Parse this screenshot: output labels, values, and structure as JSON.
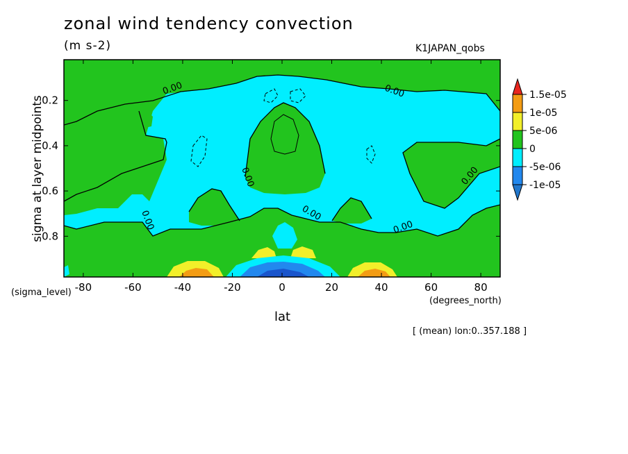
{
  "chart_data": {
    "type": "heatmap",
    "title": "zonal wind tendency convection",
    "units": "(m s-2)",
    "run_label": "K1JAPAN_qobs",
    "xlabel": "lat",
    "x_units_note": "(degrees_north)",
    "ylabel": "sigma at layer midpoints",
    "y_units_note": "(sigma_level)",
    "mean_note": "[ (mean) lon:0..357.188 ]",
    "x_ticks": [
      "-80",
      "-60",
      "-40",
      "-20",
      "0",
      "20",
      "40",
      "60",
      "80"
    ],
    "x_tick_values": [
      -80,
      -60,
      -40,
      -20,
      0,
      20,
      40,
      60,
      80
    ],
    "y_ticks": [
      "0.2",
      "0.4",
      "0.6",
      "0.8"
    ],
    "y_tick_values": [
      0.2,
      0.4,
      0.6,
      0.8
    ],
    "xlim": [
      -87.8,
      87.8
    ],
    "ylim": [
      0.98,
      0.02
    ],
    "contour_label": "0.00",
    "colorbar": {
      "labels": [
        "1.5e-05",
        "1e-05",
        "5e-06",
        "0",
        "-5e-06",
        "-1e-05"
      ],
      "colors": [
        "#e8261e",
        "#f39c14",
        "#f2ef2a",
        "#22c41e",
        "#00eeff",
        "#2288ee",
        "#2277cc"
      ]
    },
    "colors": {
      "positive_small": "#22c41e",
      "negative_small": "#00eeff",
      "positive_mid": "#f2ef2a",
      "positive_high": "#f39c14",
      "negative_mid": "#2288ee",
      "negative_high": "#1a55cc"
    }
  }
}
